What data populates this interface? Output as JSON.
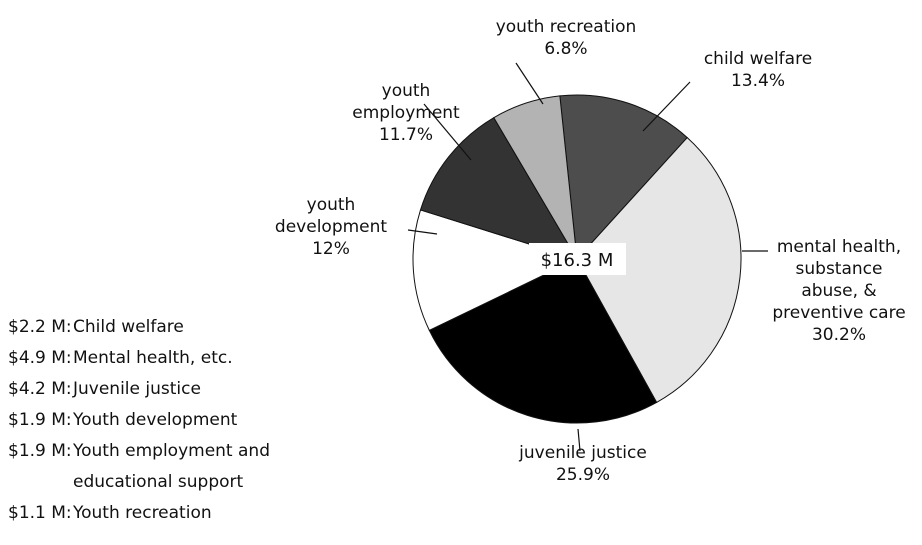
{
  "chart_data": {
    "type": "pie",
    "center_label": "$16.3 M",
    "slices": [
      {
        "label_lines": [
          "child welfare"
        ],
        "percent_label": "13.4%",
        "value": 13.4,
        "color": "#4d4d4d"
      },
      {
        "label_lines": [
          "mental health,",
          "substance",
          "abuse, &",
          "preventive care"
        ],
        "percent_label": "30.2%",
        "value": 30.2,
        "color": "#e6e6e6"
      },
      {
        "label_lines": [
          "juvenile justice"
        ],
        "percent_label": "25.9%",
        "value": 25.9,
        "color": "#000000"
      },
      {
        "label_lines": [
          "youth",
          "development"
        ],
        "percent_label": "12%",
        "value": 12,
        "color": "#ffffff"
      },
      {
        "label_lines": [
          "youth",
          "employment"
        ],
        "percent_label": "11.7%",
        "value": 11.7,
        "color": "#333333"
      },
      {
        "label_lines": [
          "youth recreation"
        ],
        "percent_label": "6.8%",
        "value": 6.8,
        "color": "#b3b3b3"
      }
    ],
    "legend": [
      {
        "amount": "$2.2 M:",
        "lines": [
          "Child welfare"
        ]
      },
      {
        "amount": "$4.9 M:",
        "lines": [
          "Mental health, etc."
        ]
      },
      {
        "amount": "$4.2 M:",
        "lines": [
          "Juvenile justice"
        ]
      },
      {
        "amount": "$1.9 M:",
        "lines": [
          "Youth development"
        ]
      },
      {
        "amount": "$1.9 M:",
        "lines": [
          "Youth employment and",
          "educational support"
        ]
      },
      {
        "amount": "$1.1 M:",
        "lines": [
          "Youth recreation"
        ]
      }
    ]
  }
}
